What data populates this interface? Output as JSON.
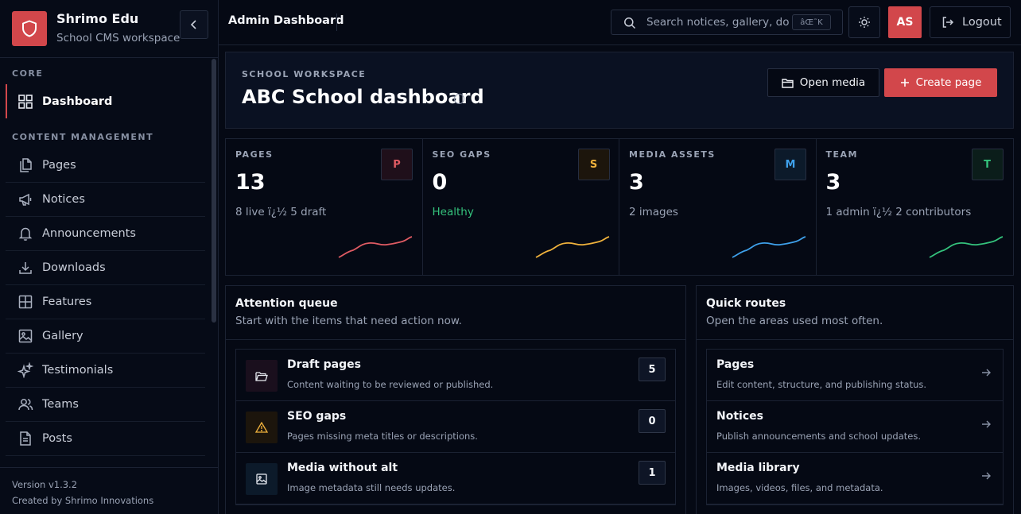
{
  "brand": {
    "name": "Shrimo Edu",
    "subtitle": "School CMS workspace"
  },
  "sidebar": {
    "core_label": "CORE",
    "content_label": "CONTENT MANAGEMENT",
    "items": [
      {
        "label": "Dashboard",
        "icon": "grid-icon"
      },
      {
        "label": "Pages",
        "icon": "files-icon"
      },
      {
        "label": "Notices",
        "icon": "megaphone-icon"
      },
      {
        "label": "Announcements",
        "icon": "bell-icon"
      },
      {
        "label": "Downloads",
        "icon": "download-icon"
      },
      {
        "label": "Features",
        "icon": "layout-grid-icon"
      },
      {
        "label": "Gallery",
        "icon": "image-icon"
      },
      {
        "label": "Testimonials",
        "icon": "sparkles-icon"
      },
      {
        "label": "Teams",
        "icon": "users-icon"
      },
      {
        "label": "Posts",
        "icon": "document-icon"
      }
    ],
    "version": "Version v1.3.2",
    "credit": "Created by Shrimo Innovations"
  },
  "topbar": {
    "heading": "Admin Dashboard",
    "search_placeholder": "Search notices, gallery, downloads",
    "search_shortcut": "âŒ˜K",
    "avatar_initials": "AS",
    "logout_label": "Logout"
  },
  "hero": {
    "kicker": "SCHOOL WORKSPACE",
    "title": "ABC School dashboard",
    "open_media_label": "Open media",
    "create_page_label": "Create page"
  },
  "stats": [
    {
      "label": "PAGES",
      "value": "13",
      "sub": "8 live ï¿½ 5 draft",
      "badge": "P",
      "accent": "#e05b63",
      "badge_bg": "#1f0f1a"
    },
    {
      "label": "SEO GAPS",
      "value": "0",
      "sub": "Healthy",
      "badge": "S",
      "accent": "#f0b23c",
      "badge_bg": "#1c150c"
    },
    {
      "label": "MEDIA ASSETS",
      "value": "3",
      "sub": "2 images",
      "badge": "M",
      "accent": "#3ea0ea",
      "badge_bg": "#0c1a2a"
    },
    {
      "label": "TEAM",
      "value": "3",
      "sub": "1 admin ï¿½ 2 contributors",
      "badge": "T",
      "accent": "#34c27c",
      "badge_bg": "#0b1d1a"
    }
  ],
  "attention": {
    "title": "Attention queue",
    "subtitle": "Start with the items that need action now.",
    "items": [
      {
        "title": "Draft pages",
        "desc": "Content waiting to be reviewed or published.",
        "count": "5",
        "icon": "folder-open-icon"
      },
      {
        "title": "SEO gaps",
        "desc": "Pages missing meta titles or descriptions.",
        "count": "0",
        "icon": "warning-icon"
      },
      {
        "title": "Media without alt",
        "desc": "Image metadata still needs updates.",
        "count": "1",
        "icon": "image-icon"
      }
    ]
  },
  "quick_routes": {
    "title": "Quick routes",
    "subtitle": "Open the areas used most often.",
    "items": [
      {
        "title": "Pages",
        "desc": "Edit content, structure, and publishing status."
      },
      {
        "title": "Notices",
        "desc": "Publish announcements and school updates."
      },
      {
        "title": "Media library",
        "desc": "Images, videos, files, and metadata."
      }
    ]
  },
  "colors": {
    "accent": "#d2474b",
    "background": "#050914",
    "healthy": "#34c27c"
  }
}
